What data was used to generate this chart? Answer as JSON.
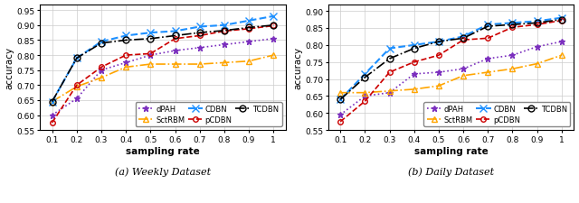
{
  "x": [
    0.1,
    0.2,
    0.3,
    0.4,
    0.5,
    0.6,
    0.7,
    0.8,
    0.9,
    1.0
  ],
  "weekly": {
    "dPAH": [
      0.6,
      0.655,
      0.75,
      0.775,
      0.8,
      0.815,
      0.825,
      0.835,
      0.845,
      0.855
    ],
    "SctRBM": [
      0.645,
      0.695,
      0.725,
      0.76,
      0.77,
      0.77,
      0.77,
      0.775,
      0.78,
      0.8
    ],
    "CDBN": [
      0.645,
      0.79,
      0.845,
      0.865,
      0.875,
      0.88,
      0.895,
      0.9,
      0.915,
      0.93
    ],
    "pCDBN": [
      0.575,
      0.7,
      0.76,
      0.8,
      0.805,
      0.855,
      0.865,
      0.88,
      0.888,
      0.898
    ],
    "TCDBN": [
      0.645,
      0.79,
      0.84,
      0.85,
      0.855,
      0.865,
      0.875,
      0.882,
      0.892,
      0.9
    ]
  },
  "daily": {
    "dPAH": [
      0.595,
      0.65,
      0.66,
      0.715,
      0.72,
      0.73,
      0.76,
      0.77,
      0.795,
      0.81
    ],
    "SctRBM": [
      0.66,
      0.66,
      0.665,
      0.67,
      0.68,
      0.71,
      0.72,
      0.73,
      0.745,
      0.77
    ],
    "CDBN": [
      0.64,
      0.715,
      0.79,
      0.8,
      0.81,
      0.825,
      0.86,
      0.865,
      0.87,
      0.88
    ],
    "pCDBN": [
      0.575,
      0.635,
      0.72,
      0.75,
      0.77,
      0.815,
      0.82,
      0.852,
      0.86,
      0.872
    ],
    "TCDBN": [
      0.64,
      0.705,
      0.76,
      0.79,
      0.81,
      0.82,
      0.855,
      0.86,
      0.865,
      0.875
    ]
  },
  "weekly_ylim": [
    0.55,
    0.97
  ],
  "weekly_yticks": [
    0.55,
    0.6,
    0.65,
    0.7,
    0.75,
    0.8,
    0.85,
    0.9,
    0.95
  ],
  "daily_ylim": [
    0.55,
    0.92
  ],
  "daily_yticks": [
    0.55,
    0.6,
    0.65,
    0.7,
    0.75,
    0.8,
    0.85,
    0.9
  ],
  "caption_a": "(a) Weekly Dataset",
  "caption_b": "(b) Daily Dataset",
  "xlabel": "sampling rate",
  "ylabel": "accuracy",
  "series_order": [
    "dPAH",
    "SctRBM",
    "CDBN",
    "pCDBN",
    "TCDBN"
  ],
  "series": {
    "dPAH": {
      "color": "#7B2FBE",
      "linestyle": "dotted",
      "marker": "*",
      "markersize": 5,
      "lw": 1.2,
      "mfc": "#7B2FBE"
    },
    "SctRBM": {
      "color": "#FFA500",
      "linestyle": "dashdot",
      "marker": "^",
      "markersize": 5,
      "lw": 1.2,
      "mfc": "none"
    },
    "CDBN": {
      "color": "#1E90FF",
      "linestyle": "dashed",
      "marker": "x",
      "markersize": 6,
      "lw": 1.5,
      "mfc": "#1E90FF"
    },
    "pCDBN": {
      "color": "#CC0000",
      "linestyle": "dashed",
      "marker": "o",
      "markersize": 4,
      "lw": 1.2,
      "mfc": "none"
    },
    "TCDBN": {
      "color": "#000000",
      "linestyle": "dashdot",
      "marker": "o",
      "markersize": 5,
      "lw": 1.2,
      "mfc": "none"
    }
  }
}
